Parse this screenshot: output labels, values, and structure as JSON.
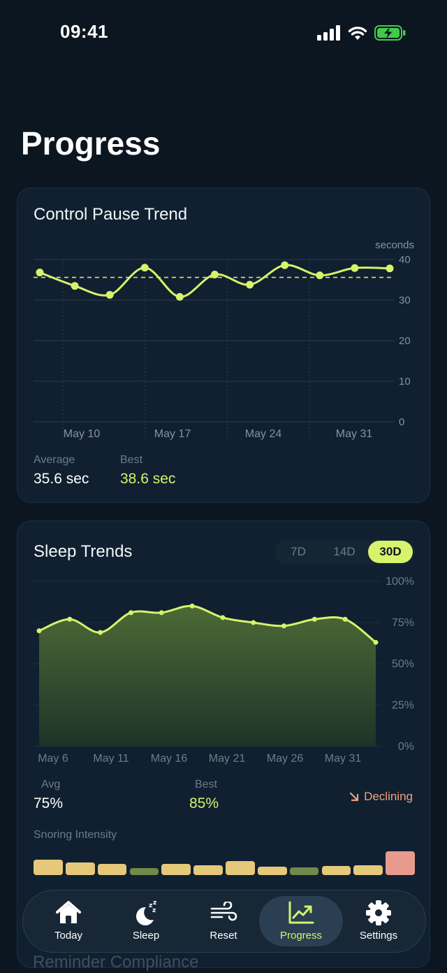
{
  "status_bar": {
    "time": "09:41"
  },
  "page": {
    "title": "Progress"
  },
  "control_pause": {
    "title": "Control Pause Trend",
    "unit_label": "seconds",
    "average_label": "Average",
    "average_value": "35.6 sec",
    "best_label": "Best",
    "best_value": "38.6 sec"
  },
  "sleep": {
    "title": "Sleep Trends",
    "range_tabs": [
      "7D",
      "14D",
      "30D"
    ],
    "selected_range": "30D",
    "avg_label": "Avg",
    "avg_value": "75%",
    "best_label": "Best",
    "best_value": "85%",
    "trend_label": "Declining",
    "snoring_label": "Snoring Intensity",
    "snoring_levels": [
      {
        "level": "moderate",
        "value": 0.55
      },
      {
        "level": "moderate",
        "value": 0.45
      },
      {
        "level": "moderate",
        "value": 0.4
      },
      {
        "level": "low",
        "value": 0.25
      },
      {
        "level": "moderate",
        "value": 0.4
      },
      {
        "level": "moderate",
        "value": 0.35
      },
      {
        "level": "moderate",
        "value": 0.5
      },
      {
        "level": "moderate",
        "value": 0.3
      },
      {
        "level": "low",
        "value": 0.28
      },
      {
        "level": "moderate",
        "value": 0.32
      },
      {
        "level": "moderate",
        "value": 0.35
      },
      {
        "level": "high",
        "value": 0.85
      }
    ]
  },
  "next_section": {
    "title": "Reminder Compliance"
  },
  "tab_bar": {
    "items": [
      {
        "label": "Today",
        "icon": "home-icon"
      },
      {
        "label": "Sleep",
        "icon": "moon-zzz-icon"
      },
      {
        "label": "Reset",
        "icon": "wind-icon"
      },
      {
        "label": "Progress",
        "icon": "trend-up-icon"
      },
      {
        "label": "Settings",
        "icon": "gear-icon"
      }
    ],
    "active": "Progress"
  },
  "colors": {
    "accent": "#d6f36b",
    "background": "#0b1620",
    "card": "#102030",
    "declining": "#f0a27a",
    "snore_moderate": "#e6c87a",
    "snore_low": "#6f8a4a",
    "snore_high": "#e89a8e"
  },
  "chart_data": [
    {
      "type": "line",
      "title": "Control Pause Trend",
      "ylabel": "seconds",
      "ylim": [
        0,
        40
      ],
      "yticks": [
        0,
        10,
        20,
        30,
        40
      ],
      "x_tick_labels": [
        "May 10",
        "May 17",
        "May 24",
        "May 31"
      ],
      "reference_line": 35.6,
      "series": [
        {
          "values": [
            36.8,
            33.5,
            31.3,
            38.0,
            30.8,
            36.3,
            33.8,
            38.6,
            36.1,
            37.9,
            37.8
          ]
        }
      ],
      "grid": true
    },
    {
      "type": "area",
      "title": "Sleep Trends",
      "ylim": [
        0,
        100
      ],
      "yticks": [
        "0%",
        "25%",
        "50%",
        "75%",
        "100%"
      ],
      "x_tick_labels": [
        "May 6",
        "May 11",
        "May 16",
        "May 21",
        "May 26",
        "May 31"
      ],
      "series": [
        {
          "values": [
            70,
            77,
            69,
            81,
            81,
            85,
            78,
            75,
            73,
            77,
            77,
            63
          ]
        }
      ],
      "grid": true
    }
  ]
}
